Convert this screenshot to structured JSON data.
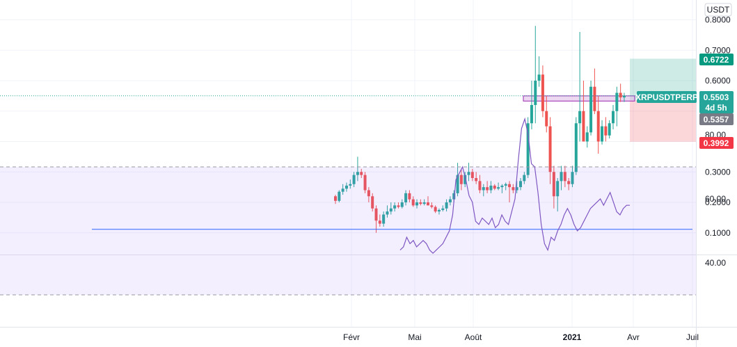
{
  "chart_data": [
    {
      "type": "candlestick",
      "symbol": "XRPUSDTPERP",
      "currency": "USDT",
      "x_tick_labels": [
        "Févr",
        "Mai",
        "Août",
        "2021",
        "Avr",
        "Juil"
      ],
      "y_tick_labels": [
        "0.8000",
        "0.7000",
        "0.6000",
        "0.3000",
        "0.2000",
        "0.1000"
      ],
      "ylim": [
        0.03,
        0.83
      ],
      "last_price": 0.5503,
      "countdown": "4d 5h",
      "price_tags": {
        "take_profit": "0.6722",
        "last": "0.5503",
        "entry": "0.5357",
        "stop_loss": "0.3992"
      },
      "position": {
        "entry": 0.5357,
        "target": 0.6722,
        "stop": 0.3992
      },
      "zone": {
        "low": 0.533,
        "high": 0.55
      },
      "candles": [
        [
          0.22,
          0.225,
          0.195,
          0.205
        ],
        [
          0.205,
          0.24,
          0.2,
          0.235
        ],
        [
          0.235,
          0.26,
          0.225,
          0.245
        ],
        [
          0.245,
          0.265,
          0.235,
          0.255
        ],
        [
          0.255,
          0.275,
          0.245,
          0.26
        ],
        [
          0.26,
          0.3,
          0.25,
          0.29
        ],
        [
          0.29,
          0.35,
          0.27,
          0.3
        ],
        [
          0.3,
          0.31,
          0.28,
          0.29
        ],
        [
          0.29,
          0.3,
          0.23,
          0.24
        ],
        [
          0.24,
          0.25,
          0.2,
          0.22
        ],
        [
          0.22,
          0.23,
          0.17,
          0.18
        ],
        [
          0.18,
          0.19,
          0.1,
          0.14
        ],
        [
          0.14,
          0.16,
          0.12,
          0.13
        ],
        [
          0.13,
          0.17,
          0.12,
          0.16
        ],
        [
          0.16,
          0.19,
          0.15,
          0.17
        ],
        [
          0.17,
          0.2,
          0.16,
          0.18
        ],
        [
          0.18,
          0.2,
          0.17,
          0.19
        ],
        [
          0.19,
          0.2,
          0.18,
          0.185
        ],
        [
          0.185,
          0.21,
          0.18,
          0.2
        ],
        [
          0.2,
          0.24,
          0.19,
          0.23
        ],
        [
          0.23,
          0.24,
          0.2,
          0.21
        ],
        [
          0.21,
          0.22,
          0.185,
          0.19
        ],
        [
          0.19,
          0.21,
          0.18,
          0.2
        ],
        [
          0.2,
          0.21,
          0.19,
          0.195
        ],
        [
          0.195,
          0.21,
          0.19,
          0.2
        ],
        [
          0.2,
          0.22,
          0.19,
          0.19
        ],
        [
          0.19,
          0.2,
          0.18,
          0.185
        ],
        [
          0.185,
          0.19,
          0.165,
          0.17
        ],
        [
          0.17,
          0.18,
          0.16,
          0.175
        ],
        [
          0.175,
          0.19,
          0.17,
          0.18
        ],
        [
          0.18,
          0.21,
          0.17,
          0.2
        ],
        [
          0.2,
          0.22,
          0.19,
          0.21
        ],
        [
          0.21,
          0.24,
          0.2,
          0.23
        ],
        [
          0.23,
          0.33,
          0.22,
          0.29
        ],
        [
          0.29,
          0.31,
          0.24,
          0.26
        ],
        [
          0.26,
          0.3,
          0.25,
          0.29
        ],
        [
          0.29,
          0.33,
          0.27,
          0.3
        ],
        [
          0.3,
          0.31,
          0.27,
          0.28
        ],
        [
          0.28,
          0.3,
          0.26,
          0.27
        ],
        [
          0.27,
          0.29,
          0.23,
          0.24
        ],
        [
          0.24,
          0.26,
          0.22,
          0.25
        ],
        [
          0.25,
          0.27,
          0.23,
          0.24
        ],
        [
          0.24,
          0.27,
          0.23,
          0.255
        ],
        [
          0.255,
          0.26,
          0.24,
          0.245
        ],
        [
          0.245,
          0.265,
          0.24,
          0.25
        ],
        [
          0.25,
          0.26,
          0.23,
          0.255
        ],
        [
          0.255,
          0.265,
          0.24,
          0.26
        ],
        [
          0.26,
          0.27,
          0.2,
          0.25
        ],
        [
          0.25,
          0.26,
          0.23,
          0.24
        ],
        [
          0.24,
          0.27,
          0.23,
          0.25
        ],
        [
          0.25,
          0.28,
          0.24,
          0.27
        ],
        [
          0.27,
          0.3,
          0.26,
          0.29
        ],
        [
          0.29,
          0.48,
          0.28,
          0.46
        ],
        [
          0.46,
          0.6,
          0.44,
          0.52
        ],
        [
          0.52,
          0.78,
          0.46,
          0.6
        ],
        [
          0.6,
          0.68,
          0.58,
          0.62
        ],
        [
          0.62,
          0.65,
          0.48,
          0.5
        ],
        [
          0.5,
          0.55,
          0.43,
          0.45
        ],
        [
          0.45,
          0.48,
          0.26,
          0.3
        ],
        [
          0.3,
          0.32,
          0.18,
          0.22
        ],
        [
          0.22,
          0.28,
          0.17,
          0.27
        ],
        [
          0.27,
          0.32,
          0.24,
          0.3
        ],
        [
          0.3,
          0.32,
          0.25,
          0.27
        ],
        [
          0.27,
          0.28,
          0.24,
          0.26
        ],
        [
          0.26,
          0.32,
          0.25,
          0.3
        ],
        [
          0.3,
          0.48,
          0.29,
          0.46
        ],
        [
          0.46,
          0.76,
          0.4,
          0.5
        ],
        [
          0.5,
          0.6,
          0.4,
          0.4
        ],
        [
          0.4,
          0.45,
          0.38,
          0.43
        ],
        [
          0.43,
          0.6,
          0.42,
          0.58
        ],
        [
          0.58,
          0.64,
          0.49,
          0.5
        ],
        [
          0.5,
          0.55,
          0.36,
          0.4
        ],
        [
          0.4,
          0.47,
          0.39,
          0.45
        ],
        [
          0.45,
          0.48,
          0.4,
          0.42
        ],
        [
          0.42,
          0.47,
          0.41,
          0.46
        ],
        [
          0.46,
          0.52,
          0.44,
          0.5
        ],
        [
          0.5,
          0.58,
          0.45,
          0.56
        ],
        [
          0.56,
          0.59,
          0.53,
          0.545
        ],
        [
          0.545,
          0.56,
          0.53,
          0.5503
        ]
      ],
      "rsi": {
        "y_tick_labels": [
          "80.00",
          "60.00",
          "40.00"
        ],
        "band": [
          30,
          70
        ],
        "ylim": [
          25,
          95
        ],
        "ma": 50.5,
        "values": [
          44,
          45,
          48,
          46,
          47,
          45,
          46,
          47,
          46,
          44,
          43,
          44,
          45,
          46,
          48,
          50,
          55,
          66,
          68,
          70,
          66,
          61,
          59,
          53,
          52,
          54,
          53,
          52,
          54,
          51,
          52,
          55,
          53,
          52,
          56,
          60,
          72,
          82,
          85,
          80,
          71,
          70,
          62,
          52,
          46,
          44,
          48,
          47,
          50,
          52,
          55,
          57,
          55,
          52,
          50,
          51,
          53,
          55,
          57,
          58,
          59,
          60,
          58,
          60,
          62,
          59,
          56,
          55,
          57,
          58,
          58
        ]
      }
    }
  ]
}
